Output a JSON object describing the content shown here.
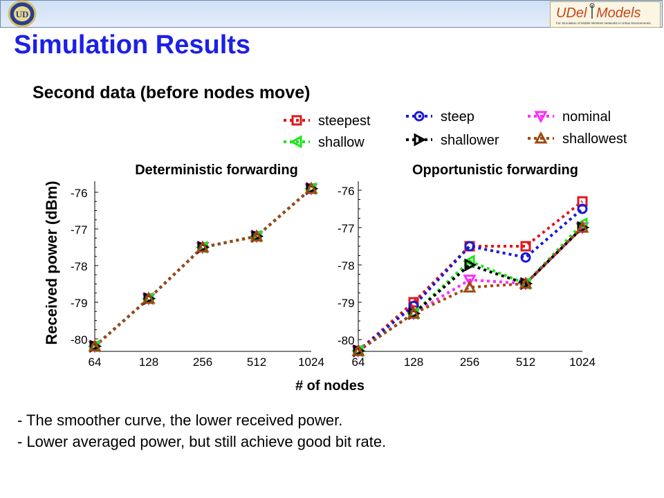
{
  "slide": {
    "title": "Simulation Results",
    "subtitle": "Second data (before nodes move)",
    "bullets": [
      "- The smoother curve, the lower received power.",
      "- Lower averaged power, but still achieve good bit rate."
    ],
    "logo_right": {
      "text": "UDel Models",
      "tagline": "For Simulation of Mobile Wireless Networks in Urban Environments"
    },
    "colors": {
      "title": "#1c20e6",
      "header_band": "#d6e5f8"
    }
  },
  "chart_data": [
    {
      "type": "line",
      "title": "Deterministic forwarding",
      "ylabel": "Received power (dBm)",
      "xlabel": "# of nodes",
      "categories": [
        "64",
        "128",
        "256",
        "512",
        "1024"
      ],
      "yticks": [
        "-76",
        "-77",
        "-78",
        "-79",
        "-80"
      ],
      "ylim": [
        -80.25,
        -75.85
      ],
      "grid": false,
      "series": [
        {
          "name": "steepest",
          "color": "#e0161b",
          "marker": "square",
          "values": [
            -80.2,
            -78.9,
            -77.5,
            -77.2,
            -75.9
          ]
        },
        {
          "name": "steep",
          "color": "#1818d8",
          "marker": "circle",
          "values": [
            -80.2,
            -78.9,
            -77.5,
            -77.2,
            -75.9
          ]
        },
        {
          "name": "nominal",
          "color": "#ff2bff",
          "marker": "triangle-down",
          "values": [
            -80.2,
            -78.9,
            -77.5,
            -77.2,
            -75.9
          ]
        },
        {
          "name": "shallow",
          "color": "#17e817",
          "marker": "triangle-left",
          "values": [
            -80.2,
            -78.9,
            -77.5,
            -77.2,
            -75.9
          ]
        },
        {
          "name": "shallower",
          "color": "#000000",
          "marker": "triangle-right",
          "values": [
            -80.2,
            -78.9,
            -77.5,
            -77.2,
            -75.9
          ]
        },
        {
          "name": "shallowest",
          "color": "#9e4a12",
          "marker": "triangle-up",
          "values": [
            -80.2,
            -78.9,
            -77.5,
            -77.2,
            -75.9
          ]
        }
      ]
    },
    {
      "type": "line",
      "title": "Opportunistic forwarding",
      "ylabel": "Received power (dBm)",
      "xlabel": "# of nodes",
      "categories": [
        "64",
        "128",
        "256",
        "512",
        "1024"
      ],
      "yticks": [
        "-76",
        "-77",
        "-78",
        "-79",
        "-80"
      ],
      "ylim": [
        -80.35,
        -75.75
      ],
      "grid": false,
      "series": [
        {
          "name": "steepest",
          "color": "#e0161b",
          "marker": "square",
          "values": [
            -80.3,
            -79.0,
            -77.5,
            -77.5,
            -76.3
          ]
        },
        {
          "name": "steep",
          "color": "#1818d8",
          "marker": "circle",
          "values": [
            -80.3,
            -79.1,
            -77.5,
            -77.8,
            -76.5
          ]
        },
        {
          "name": "nominal",
          "color": "#ff2bff",
          "marker": "triangle-down",
          "values": [
            -80.3,
            -79.3,
            -78.4,
            -78.5,
            -77.0
          ]
        },
        {
          "name": "shallow",
          "color": "#17e817",
          "marker": "triangle-left",
          "values": [
            -80.3,
            -79.3,
            -77.9,
            -78.5,
            -76.9
          ]
        },
        {
          "name": "shallower",
          "color": "#000000",
          "marker": "triangle-right",
          "values": [
            -80.3,
            -79.3,
            -78.0,
            -78.5,
            -77.0
          ]
        },
        {
          "name": "shallowest",
          "color": "#9e4a12",
          "marker": "triangle-up",
          "values": [
            -80.3,
            -79.3,
            -78.6,
            -78.5,
            -77.0
          ]
        }
      ]
    }
  ]
}
